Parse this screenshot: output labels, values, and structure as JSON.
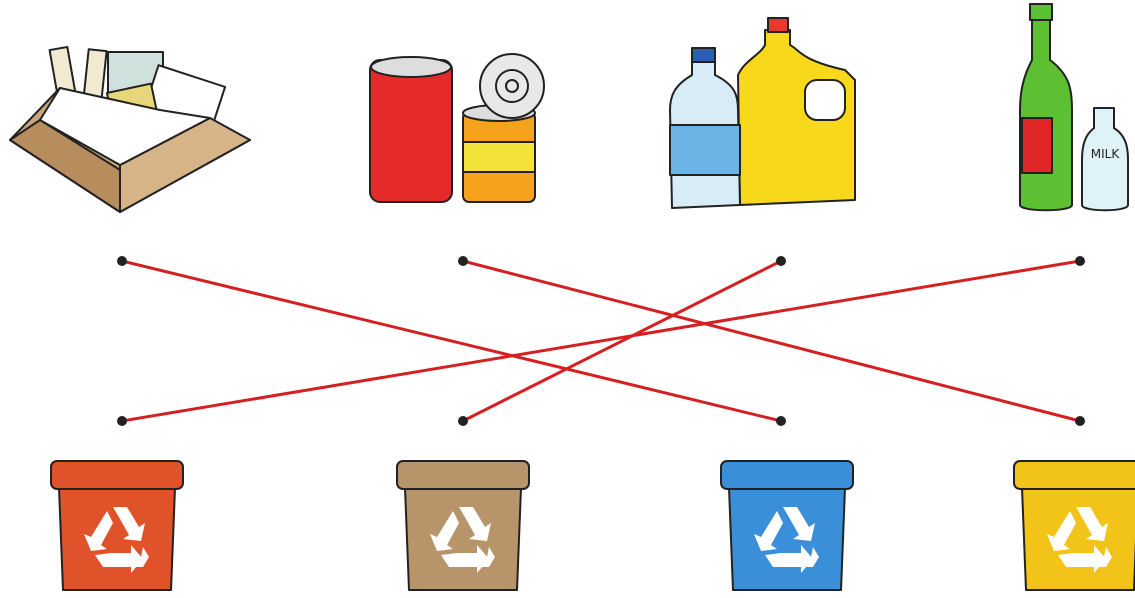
{
  "bottle_label": "MILK"
}
